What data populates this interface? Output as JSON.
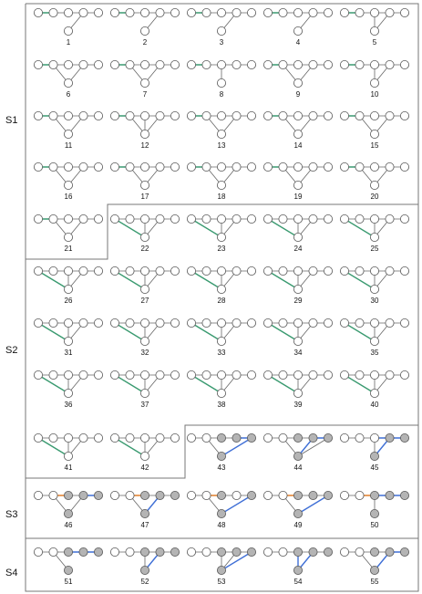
{
  "groups": [
    {
      "label": "S1"
    },
    {
      "label": "S2"
    },
    {
      "label": "S3"
    },
    {
      "label": "S4"
    }
  ],
  "colors": {
    "green": "#3a9a70",
    "blue": "#3f6fd6",
    "orange": "#e07f2a",
    "gray_node": "#b4b4b4",
    "edge": "#666666",
    "border": "#777777"
  },
  "graphs": [
    {
      "id": "1",
      "top": [
        1,
        2,
        3,
        4,
        5
      ],
      "hub": "b",
      "spokes": [
        4
      ],
      "green": [
        [
          1,
          2
        ]
      ],
      "blue": [],
      "orange": [],
      "gray": []
    },
    {
      "id": "2",
      "top": [
        1,
        2,
        3,
        4,
        5
      ],
      "hub": "b",
      "spokes": [
        4
      ],
      "green": [
        [
          1,
          2
        ]
      ],
      "blue": [],
      "orange": [],
      "gray": []
    },
    {
      "id": "3",
      "top": [
        1,
        2,
        3,
        4,
        5
      ],
      "hub": "b",
      "spokes": [
        4
      ],
      "green": [
        [
          1,
          2
        ]
      ],
      "blue": [],
      "orange": [],
      "gray": []
    },
    {
      "id": "4",
      "top": [
        1,
        2,
        3,
        4,
        5
      ],
      "hub": "b",
      "spokes": [
        4
      ],
      "green": [
        [
          1,
          2
        ]
      ],
      "blue": [],
      "orange": [],
      "gray": []
    },
    {
      "id": "5",
      "top": [
        1,
        2,
        3,
        4,
        5
      ],
      "hub": "b",
      "spokes": [
        3,
        4
      ],
      "green": [
        [
          1,
          2
        ]
      ],
      "blue": [],
      "orange": [],
      "gray": []
    },
    {
      "id": "6",
      "top": [
        1,
        2,
        3,
        4,
        5
      ],
      "hub": "b",
      "spokes": [
        2,
        4
      ],
      "green": [
        [
          1,
          2
        ]
      ],
      "blue": [],
      "orange": [],
      "gray": []
    },
    {
      "id": "7",
      "top": [
        1,
        2,
        3,
        4,
        5
      ],
      "hub": "b",
      "spokes": [
        2,
        4
      ],
      "green": [
        [
          1,
          2
        ]
      ],
      "blue": [],
      "orange": [],
      "gray": []
    },
    {
      "id": "8",
      "top": [
        1,
        2,
        3,
        4,
        5
      ],
      "hub": "b",
      "spokes": [
        3
      ],
      "green": [
        [
          1,
          2
        ]
      ],
      "blue": [],
      "orange": [],
      "gray": []
    },
    {
      "id": "9",
      "top": [
        1,
        2,
        3,
        4,
        5
      ],
      "hub": "b",
      "spokes": [
        2,
        4
      ],
      "green": [
        [
          1,
          2
        ]
      ],
      "blue": [],
      "orange": [],
      "gray": []
    },
    {
      "id": "10",
      "top": [
        1,
        2,
        3,
        4,
        5
      ],
      "hub": "b",
      "spokes": [
        3,
        4
      ],
      "green": [
        [
          1,
          2
        ]
      ],
      "blue": [],
      "orange": [],
      "gray": []
    },
    {
      "id": "11",
      "top": [
        1,
        2,
        3,
        4,
        5
      ],
      "hub": "b",
      "spokes": [
        2,
        4
      ],
      "green": [
        [
          1,
          2
        ]
      ],
      "blue": [],
      "orange": [],
      "gray": []
    },
    {
      "id": "12",
      "top": [
        1,
        2,
        3,
        4,
        5
      ],
      "hub": "b",
      "spokes": [
        2,
        3,
        4
      ],
      "green": [
        [
          1,
          2
        ]
      ],
      "blue": [],
      "orange": [],
      "gray": []
    },
    {
      "id": "13",
      "top": [
        1,
        2,
        3,
        4,
        5
      ],
      "hub": "b",
      "spokes": [
        2,
        4
      ],
      "green": [
        [
          1,
          2
        ]
      ],
      "blue": [],
      "orange": [],
      "gray": []
    },
    {
      "id": "14",
      "top": [
        1,
        2,
        3,
        4,
        5
      ],
      "hub": "b",
      "spokes": [
        2,
        4
      ],
      "green": [
        [
          1,
          2
        ]
      ],
      "blue": [],
      "orange": [],
      "gray": []
    },
    {
      "id": "15",
      "top": [
        1,
        2,
        3,
        4,
        5
      ],
      "hub": "b",
      "spokes": [
        2,
        4
      ],
      "green": [
        [
          1,
          2
        ]
      ],
      "blue": [],
      "orange": [],
      "gray": []
    },
    {
      "id": "16",
      "top": [
        1,
        2,
        3,
        4,
        5
      ],
      "hub": "b",
      "spokes": [
        2,
        4
      ],
      "green": [
        [
          1,
          2
        ]
      ],
      "blue": [],
      "orange": [],
      "gray": []
    },
    {
      "id": "17",
      "top": [
        1,
        2,
        3,
        4,
        5
      ],
      "hub": "b",
      "spokes": [
        2,
        4
      ],
      "green": [
        [
          1,
          2
        ]
      ],
      "blue": [],
      "orange": [],
      "gray": []
    },
    {
      "id": "18",
      "top": [
        1,
        2,
        3,
        4,
        5
      ],
      "hub": "b",
      "spokes": [
        2,
        4
      ],
      "green": [
        [
          1,
          2
        ]
      ],
      "blue": [],
      "orange": [],
      "gray": []
    },
    {
      "id": "19",
      "top": [
        1,
        2,
        3,
        4,
        5
      ],
      "hub": "b",
      "spokes": [
        2,
        4
      ],
      "green": [
        [
          1,
          2
        ]
      ],
      "blue": [],
      "orange": [],
      "gray": []
    },
    {
      "id": "20",
      "top": [
        1,
        2,
        3,
        4,
        5
      ],
      "hub": "b",
      "spokes": [
        2,
        4
      ],
      "green": [
        [
          1,
          2
        ]
      ],
      "blue": [],
      "orange": [],
      "gray": []
    },
    {
      "id": "21",
      "top": [
        1,
        2,
        3,
        4,
        5
      ],
      "hub": "b",
      "spokes": [
        2,
        4
      ],
      "green": [
        [
          1,
          2
        ]
      ],
      "blue": [],
      "orange": [],
      "gray": []
    },
    {
      "id": "22",
      "top": [
        1,
        2,
        3,
        4,
        5
      ],
      "hub": "b",
      "spokes": [
        1,
        3,
        4
      ],
      "green": [
        [
          1,
          "b"
        ]
      ],
      "blue": [],
      "orange": [],
      "gray": []
    },
    {
      "id": "23",
      "top": [
        1,
        2,
        3,
        4,
        5
      ],
      "hub": "b",
      "spokes": [
        1,
        3,
        4
      ],
      "green": [
        [
          1,
          "b"
        ]
      ],
      "blue": [],
      "orange": [],
      "gray": []
    },
    {
      "id": "24",
      "top": [
        1,
        2,
        3,
        4,
        5
      ],
      "hub": "b",
      "spokes": [
        1,
        3,
        4
      ],
      "green": [
        [
          1,
          "b"
        ]
      ],
      "blue": [],
      "orange": [],
      "gray": []
    },
    {
      "id": "25",
      "top": [
        1,
        2,
        3,
        4,
        5
      ],
      "hub": "b",
      "spokes": [
        1,
        3,
        4
      ],
      "green": [
        [
          1,
          "b"
        ]
      ],
      "blue": [],
      "orange": [],
      "gray": []
    },
    {
      "id": "26",
      "top": [
        1,
        2,
        3,
        4,
        5
      ],
      "hub": "b",
      "spokes": [
        1,
        3,
        4
      ],
      "green": [
        [
          1,
          "b"
        ]
      ],
      "blue": [],
      "orange": [],
      "gray": []
    },
    {
      "id": "27",
      "top": [
        1,
        2,
        3,
        4,
        5
      ],
      "hub": "b",
      "spokes": [
        1,
        3,
        4
      ],
      "green": [
        [
          1,
          "b"
        ]
      ],
      "blue": [],
      "orange": [],
      "gray": []
    },
    {
      "id": "28",
      "top": [
        1,
        2,
        3,
        4,
        5
      ],
      "hub": "b",
      "spokes": [
        1,
        3,
        4
      ],
      "green": [
        [
          1,
          "b"
        ]
      ],
      "blue": [],
      "orange": [],
      "gray": []
    },
    {
      "id": "29",
      "top": [
        1,
        2,
        3,
        4,
        5
      ],
      "hub": "b",
      "spokes": [
        1,
        3,
        4
      ],
      "green": [
        [
          1,
          "b"
        ]
      ],
      "blue": [],
      "orange": [],
      "gray": []
    },
    {
      "id": "30",
      "top": [
        1,
        2,
        3,
        4,
        5
      ],
      "hub": "b",
      "spokes": [
        1,
        3,
        4
      ],
      "green": [
        [
          1,
          "b"
        ]
      ],
      "blue": [],
      "orange": [],
      "gray": []
    },
    {
      "id": "31",
      "top": [
        1,
        2,
        3,
        4,
        5
      ],
      "hub": "b",
      "spokes": [
        1,
        3,
        4
      ],
      "green": [
        [
          1,
          "b"
        ]
      ],
      "blue": [],
      "orange": [],
      "gray": []
    },
    {
      "id": "32",
      "top": [
        1,
        2,
        3,
        4,
        5
      ],
      "hub": "b",
      "spokes": [
        1,
        3,
        4
      ],
      "green": [
        [
          1,
          "b"
        ]
      ],
      "blue": [],
      "orange": [],
      "gray": []
    },
    {
      "id": "33",
      "top": [
        1,
        2,
        3,
        4,
        5
      ],
      "hub": "b",
      "spokes": [
        1,
        3,
        4
      ],
      "green": [
        [
          1,
          "b"
        ]
      ],
      "blue": [],
      "orange": [],
      "gray": []
    },
    {
      "id": "34",
      "top": [
        1,
        2,
        3,
        4,
        5
      ],
      "hub": "b",
      "spokes": [
        1,
        3,
        4
      ],
      "green": [
        [
          1,
          "b"
        ]
      ],
      "blue": [],
      "orange": [],
      "gray": []
    },
    {
      "id": "35",
      "top": [
        1,
        2,
        3,
        4,
        5
      ],
      "hub": "b",
      "spokes": [
        1,
        3,
        4
      ],
      "green": [
        [
          1,
          "b"
        ]
      ],
      "blue": [],
      "orange": [],
      "gray": []
    },
    {
      "id": "36",
      "top": [
        1,
        2,
        3,
        4,
        5
      ],
      "hub": "b",
      "spokes": [
        1,
        3,
        4
      ],
      "green": [
        [
          1,
          "b"
        ]
      ],
      "blue": [],
      "orange": [],
      "gray": []
    },
    {
      "id": "37",
      "top": [
        1,
        2,
        3,
        4,
        5
      ],
      "hub": "b",
      "spokes": [
        1,
        3,
        4
      ],
      "green": [
        [
          1,
          "b"
        ]
      ],
      "blue": [],
      "orange": [],
      "gray": []
    },
    {
      "id": "38",
      "top": [
        1,
        2,
        3,
        4,
        5
      ],
      "hub": "b",
      "spokes": [
        1,
        3,
        4
      ],
      "green": [
        [
          1,
          "b"
        ]
      ],
      "blue": [],
      "orange": [],
      "gray": []
    },
    {
      "id": "39",
      "top": [
        1,
        2,
        3,
        4,
        5
      ],
      "hub": "b",
      "spokes": [
        1,
        3,
        4
      ],
      "green": [
        [
          1,
          "b"
        ]
      ],
      "blue": [],
      "orange": [],
      "gray": []
    },
    {
      "id": "40",
      "top": [
        1,
        2,
        3,
        4,
        5
      ],
      "hub": "b",
      "spokes": [
        1,
        3,
        4
      ],
      "green": [
        [
          1,
          "b"
        ]
      ],
      "blue": [],
      "orange": [],
      "gray": []
    },
    {
      "id": "41",
      "top": [
        1,
        2,
        3,
        4,
        5
      ],
      "hub": "b",
      "spokes": [
        1,
        3,
        4
      ],
      "green": [
        [
          1,
          "b"
        ]
      ],
      "blue": [],
      "orange": [],
      "gray": []
    },
    {
      "id": "42",
      "top": [
        1,
        2,
        3,
        4,
        5
      ],
      "hub": "b",
      "spokes": [
        1,
        3,
        4
      ],
      "green": [
        [
          1,
          "b"
        ]
      ],
      "blue": [],
      "orange": [],
      "gray": []
    },
    {
      "id": "43",
      "top": [
        1,
        2,
        3,
        4,
        5
      ],
      "hub": "b",
      "spokes": [
        2,
        5
      ],
      "green": [],
      "blue": [
        [
          "b",
          5
        ],
        [
          4,
          5
        ]
      ],
      "orange": [],
      "gray": [
        3,
        4,
        5,
        "b"
      ]
    },
    {
      "id": "44",
      "top": [
        1,
        2,
        3,
        4,
        5
      ],
      "hub": "b",
      "spokes": [
        2,
        4,
        5
      ],
      "green": [],
      "blue": [
        [
          "b",
          4
        ],
        [
          4,
          5
        ]
      ],
      "orange": [],
      "gray": [
        3,
        4,
        5,
        "b"
      ]
    },
    {
      "id": "45",
      "top": [
        1,
        2,
        3,
        4,
        5
      ],
      "hub": "b",
      "spokes": [
        3,
        4
      ],
      "green": [],
      "blue": [
        [
          "b",
          4
        ],
        [
          3,
          4
        ],
        [
          4,
          5
        ]
      ],
      "orange": [],
      "gray": [
        4,
        5,
        "b"
      ]
    },
    {
      "id": "46",
      "top": [
        1,
        2,
        3,
        4,
        5
      ],
      "hub": "b",
      "spokes": [
        2,
        4
      ],
      "green": [],
      "blue": [
        [
          4,
          5
        ]
      ],
      "orange": [
        [
          2,
          3
        ]
      ],
      "gray": [
        3,
        4,
        5,
        "b"
      ]
    },
    {
      "id": "47",
      "top": [
        1,
        2,
        3,
        4,
        5
      ],
      "hub": "b",
      "spokes": [
        2,
        4
      ],
      "green": [],
      "blue": [
        [
          "b",
          4
        ]
      ],
      "orange": [
        [
          2,
          3
        ]
      ],
      "gray": [
        3,
        4,
        5,
        "b"
      ]
    },
    {
      "id": "48",
      "top": [
        1,
        2,
        3,
        4,
        5
      ],
      "hub": "b",
      "spokes": [
        2,
        5
      ],
      "green": [],
      "blue": [
        [
          "b",
          5
        ]
      ],
      "orange": [
        [
          2,
          3
        ]
      ],
      "gray": [
        3,
        5,
        "b"
      ]
    },
    {
      "id": "49",
      "top": [
        1,
        2,
        3,
        4,
        5
      ],
      "hub": "b",
      "spokes": [
        2,
        5
      ],
      "green": [],
      "blue": [
        [
          "b",
          5
        ]
      ],
      "orange": [
        [
          2,
          3
        ]
      ],
      "gray": [
        3,
        4,
        5,
        "b"
      ]
    },
    {
      "id": "50",
      "top": [
        1,
        2,
        3,
        4,
        5
      ],
      "hub": "b",
      "spokes": [
        3
      ],
      "green": [],
      "blue": [
        [
          3,
          4
        ],
        [
          4,
          5
        ]
      ],
      "orange": [
        [
          2,
          3
        ]
      ],
      "gray": [
        3,
        4,
        5,
        "b"
      ]
    },
    {
      "id": "51",
      "top": [
        1,
        2,
        3,
        4,
        5
      ],
      "hub": "b",
      "spokes": [
        2
      ],
      "green": [],
      "blue": [
        [
          3,
          4
        ],
        [
          4,
          5
        ]
      ],
      "orange": [],
      "gray": [
        3,
        4,
        5,
        "b"
      ]
    },
    {
      "id": "52",
      "top": [
        1,
        2,
        3,
        4,
        5
      ],
      "hub": "b",
      "spokes": [
        3,
        4
      ],
      "green": [],
      "blue": [
        [
          "b",
          4
        ]
      ],
      "orange": [],
      "gray": [
        3,
        4,
        5,
        "b"
      ]
    },
    {
      "id": "53",
      "top": [
        1,
        2,
        3,
        4,
        5
      ],
      "hub": "b",
      "spokes": [
        3,
        4
      ],
      "green": [],
      "blue": [
        [
          "b",
          5
        ]
      ],
      "orange": [],
      "gray": [
        3,
        4,
        5,
        "b"
      ]
    },
    {
      "id": "54",
      "top": [
        1,
        2,
        3,
        4,
        5
      ],
      "hub": "b",
      "spokes": [
        3,
        4
      ],
      "green": [],
      "blue": [
        [
          "b",
          4
        ],
        [
          "b",
          3
        ]
      ],
      "orange": [],
      "gray": [
        3,
        4,
        5,
        "b"
      ]
    },
    {
      "id": "55",
      "top": [
        1,
        2,
        3,
        4,
        5
      ],
      "hub": "b",
      "spokes": [
        2,
        4
      ],
      "green": [],
      "blue": [
        [
          "b",
          4
        ],
        [
          4,
          5
        ]
      ],
      "orange": [],
      "gray": [
        3,
        4,
        5,
        "b"
      ]
    }
  ]
}
